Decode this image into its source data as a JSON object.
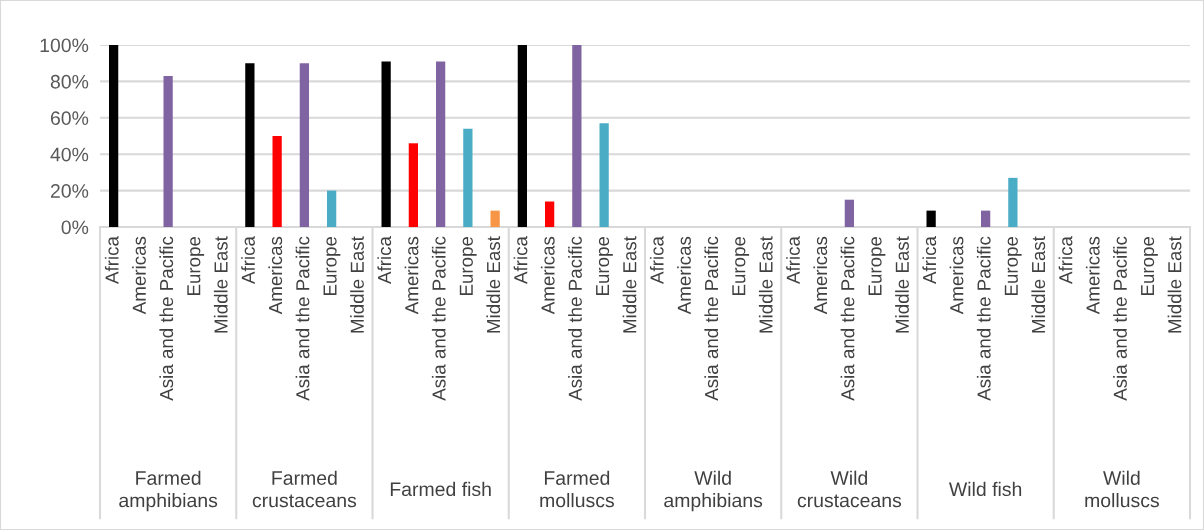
{
  "chart_data": {
    "type": "bar",
    "categories": [
      "Africa",
      "Americas",
      "Asia and the Pacific",
      "Europe",
      "Middle East",
      "Africa",
      "Americas",
      "Asia and the Pacific",
      "Europe",
      "Middle East",
      "Africa",
      "Americas",
      "Asia and the Pacific",
      "Europe",
      "Middle East",
      "Africa",
      "Americas",
      "Asia and the Pacific",
      "Europe",
      "Middle East",
      "Africa",
      "Americas",
      "Asia and the Pacific",
      "Europe",
      "Middle East",
      "Africa",
      "Americas",
      "Asia and the Pacific",
      "Europe",
      "Middle East",
      "Africa",
      "Americas",
      "Asia and the Pacific",
      "Europe",
      "Middle East",
      "Africa",
      "Americas",
      "Asia and the Pacific",
      "Europe",
      "Middle East"
    ],
    "values": [
      100,
      0,
      83,
      0,
      0,
      90,
      50,
      90,
      20,
      0,
      91,
      46,
      91,
      54,
      9,
      100,
      14,
      100,
      57,
      0,
      0,
      0,
      0,
      0,
      0,
      0,
      0,
      15,
      0,
      0,
      9,
      0,
      9,
      27,
      0,
      0,
      0,
      0,
      0,
      0
    ],
    "colors": [
      "#000000",
      "#ff0000",
      "#8064a2",
      "#4bacc6",
      "#f79646",
      "#000000",
      "#ff0000",
      "#8064a2",
      "#4bacc6",
      "#f79646",
      "#000000",
      "#ff0000",
      "#8064a2",
      "#4bacc6",
      "#f79646",
      "#000000",
      "#ff0000",
      "#8064a2",
      "#4bacc6",
      "#f79646",
      "#000000",
      "#ff0000",
      "#8064a2",
      "#4bacc6",
      "#f79646",
      "#000000",
      "#ff0000",
      "#8064a2",
      "#4bacc6",
      "#f79646",
      "#000000",
      "#ff0000",
      "#8064a2",
      "#4bacc6",
      "#f79646",
      "#000000",
      "#ff0000",
      "#8064a2",
      "#4bacc6",
      "#f79646"
    ],
    "annotations": [
      "Farmed\namphibians",
      "Farmed\ncrustaceans",
      "Farmed fish",
      "Farmed\nmolluscs",
      "Wild\namphibians",
      "Wild\ncrustaceans",
      "Wild fish",
      "Wild\nmolluscs"
    ],
    "ylim": [
      0,
      100
    ],
    "yticks": [
      {
        "value": 0,
        "label": "0%"
      },
      {
        "value": 20,
        "label": "20%"
      },
      {
        "value": 40,
        "label": "40%"
      },
      {
        "value": 60,
        "label": "60%"
      },
      {
        "value": 80,
        "label": "80%"
      },
      {
        "value": 100,
        "label": "100%"
      }
    ],
    "grid": "y",
    "legend": false
  }
}
